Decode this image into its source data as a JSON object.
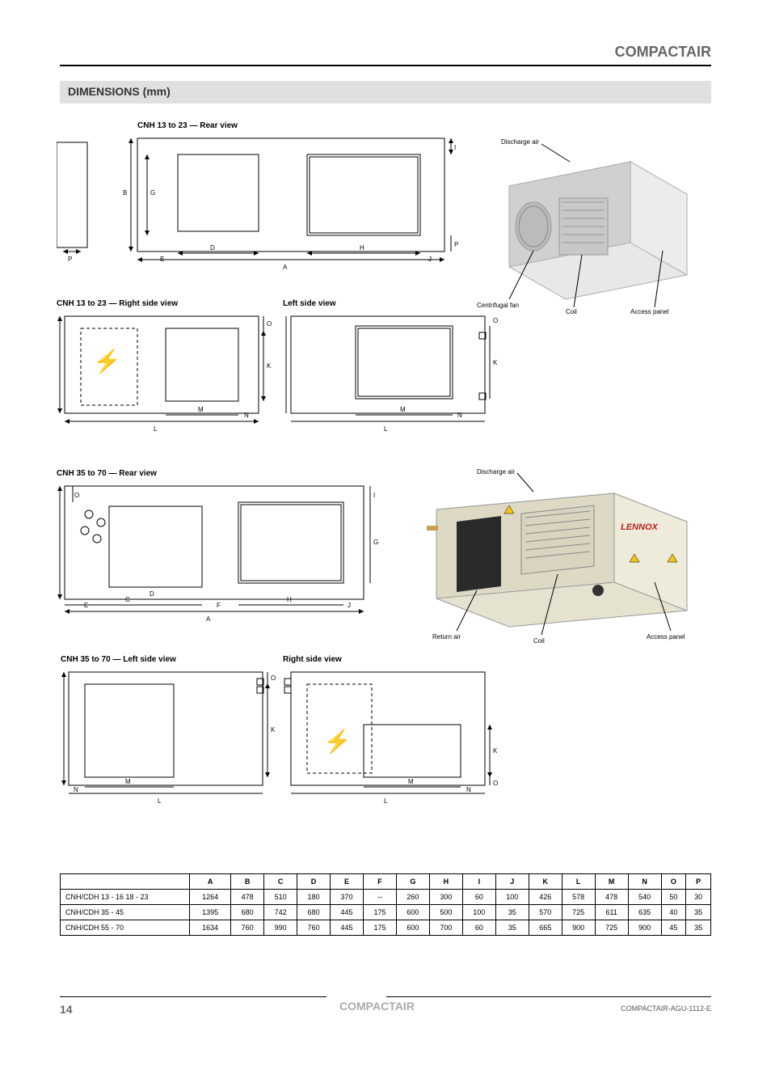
{
  "header": {
    "right": "COMPACTAIR"
  },
  "section": {
    "title": "DIMENSIONS (mm)"
  },
  "figure_labels": {
    "cnh13_23_back": "CNH 13 to 23 — Rear view",
    "cnh13_23_side": "CNH 13 to 23 — Right side view",
    "cnh13_23_left": "Left side view",
    "cnh35_70_back": "CNH 35 to 70 — Rear view",
    "cnh35_70_left": "CNH 35 to 70 — Left side view",
    "cnh35_70_right": "Right side view"
  },
  "callouts_top": {
    "top": "Discharge air",
    "fan": "Centrifugal fan",
    "coil": "Coil",
    "panel": "Access panel"
  },
  "callouts_bottom": {
    "top": "Discharge air",
    "return": "Return air",
    "coil": "Coil",
    "panel": "Access panel"
  },
  "dim_letters": {
    "A": "A",
    "B": "B",
    "C": "C",
    "D": "D",
    "E": "E",
    "F": "F",
    "G": "G",
    "H": "H",
    "I": "I",
    "J": "J",
    "K": "K",
    "L": "L",
    "M": "M",
    "N": "N",
    "O": "O",
    "P": "P"
  },
  "table": {
    "columns": [
      "",
      "A",
      "B",
      "C",
      "D",
      "E",
      "F",
      "G",
      "H",
      "I",
      "J",
      "K",
      "L",
      "M",
      "N",
      "O",
      "P"
    ],
    "rows": [
      [
        "CNH/CDH 13 - 16 18 - 23",
        "1264",
        "478",
        "510",
        "180",
        "370",
        "--",
        "260",
        "300",
        "60",
        "100",
        "426",
        "578",
        "478",
        "540",
        "50",
        "30"
      ],
      [
        "CNH/CDH 35 - 45",
        "1395",
        "680",
        "742",
        "680",
        "445",
        "175",
        "600",
        "500",
        "100",
        "35",
        "570",
        "725",
        "611",
        "635",
        "40",
        "35"
      ],
      [
        "CNH/CDH 55 - 70",
        "1634",
        "760",
        "990",
        "760",
        "445",
        "175",
        "600",
        "700",
        "60",
        "35",
        "665",
        "900",
        "725",
        "900",
        "45",
        "35"
      ]
    ],
    "col_widths": {
      "first": 160,
      "rest": 40
    },
    "font_size": 9,
    "border_color": "#000000"
  },
  "footer": {
    "page": "14",
    "center": "COMPACTAIR",
    "right": "COMPACTAIR-AGU-1112-E"
  },
  "colors": {
    "section_bg": "#e0e0e0",
    "header_text": "#666666",
    "body_bg": "#ffffff",
    "unit_body": "#e8e8e8",
    "unit_face": "#d0d0d0"
  }
}
